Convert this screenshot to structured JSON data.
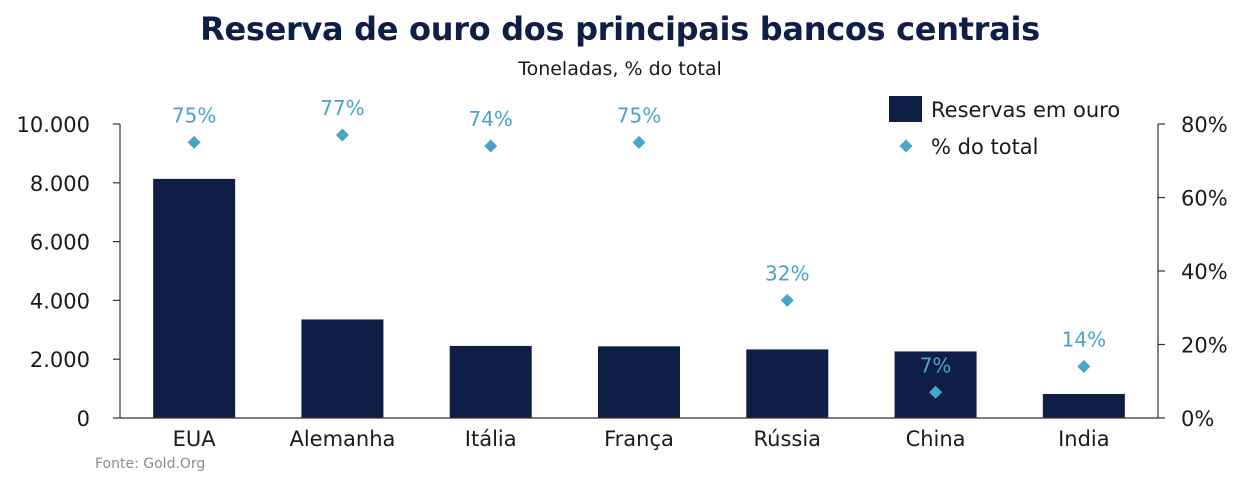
{
  "chart_data": {
    "type": "bar",
    "title": "Reserva de ouro dos principais bancos centrais",
    "subtitle": "Toneladas, % do total",
    "source": "Fonte: Gold.Org",
    "categories": [
      "EUA",
      "Alemanha",
      "Itália",
      "França",
      "Rússia",
      "China",
      "India"
    ],
    "series": [
      {
        "name": "Reservas em ouro",
        "type": "bar",
        "axis": "left",
        "values": [
          8133,
          3352,
          2452,
          2437,
          2333,
          2264,
          818
        ]
      },
      {
        "name": "% do total",
        "type": "scatter",
        "axis": "right",
        "values": [
          75,
          77,
          74,
          75,
          32,
          7,
          14
        ],
        "labels": [
          "75%",
          "77%",
          "74%",
          "75%",
          "32%",
          "7%",
          "14%"
        ]
      }
    ],
    "yleft": {
      "ylim": [
        0,
        10000
      ],
      "ticks": [
        0,
        2000,
        4000,
        6000,
        8000,
        10000
      ],
      "tick_labels": [
        "0",
        "2.000",
        "4.000",
        "6.000",
        "8.000",
        "10.000"
      ]
    },
    "yright": {
      "ylim": [
        0,
        80
      ],
      "ticks": [
        0,
        20,
        40,
        60,
        80
      ],
      "tick_labels": [
        "0%",
        "20%",
        "40%",
        "60%",
        "80%"
      ]
    },
    "legend": {
      "placement": "top-right",
      "items": [
        "Reservas em ouro",
        "% do total"
      ]
    },
    "grid": false,
    "colors": {
      "bar": "#0e1e47",
      "marker": "#4aa3c9",
      "label": "#4aa3c9",
      "axis": "#333333",
      "text": "#1a1a1a"
    }
  }
}
